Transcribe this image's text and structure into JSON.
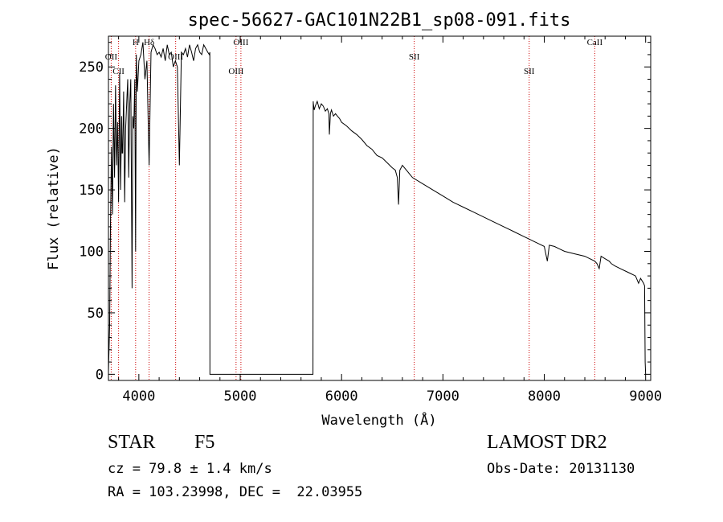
{
  "chart_data": {
    "type": "line",
    "title": "spec-56627-GAC101N22B1_sp08-091.fits",
    "xlabel": "Wavelength (Å)",
    "ylabel": "Flux (relative)",
    "xlim": [
      3700,
      9050
    ],
    "ylim": [
      -5,
      275
    ],
    "xticks": [
      4000,
      5000,
      6000,
      7000,
      8000,
      9000
    ],
    "yticks": [
      0,
      50,
      100,
      150,
      200,
      250
    ],
    "grid": false,
    "line_color": "#000000",
    "marker_color": "#cc0000",
    "gaps": [
      [
        4700,
        5720
      ]
    ],
    "series": [
      {
        "x": [
          3700,
          3712,
          3720,
          3730,
          3740,
          3750,
          3760,
          3770,
          3780,
          3790,
          3800,
          3810,
          3820,
          3830,
          3835,
          3840,
          3850,
          3860,
          3870,
          3880,
          3890,
          3900,
          3910,
          3920,
          3933,
          3940,
          3950,
          3960,
          3968,
          3975,
          3985,
          4000,
          4020,
          4040,
          4060,
          4080,
          4101,
          4120,
          4140,
          4160,
          4180,
          4200,
          4220,
          4240,
          4260,
          4280,
          4300,
          4320,
          4340,
          4360,
          4380,
          4400,
          4420,
          4440,
          4460,
          4480,
          4500,
          4520,
          4540,
          4560,
          4580,
          4600,
          4620,
          4640,
          4660,
          4680,
          4695,
          4700,
          4701,
          5718,
          5720,
          5722,
          5730,
          5740,
          5760,
          5780,
          5800,
          5820,
          5840,
          5860,
          5875,
          5880,
          5890,
          5900,
          5920,
          5940,
          5960,
          5980,
          6000,
          6050,
          6100,
          6150,
          6200,
          6250,
          6300,
          6350,
          6400,
          6450,
          6500,
          6530,
          6550,
          6562,
          6575,
          6600,
          6650,
          6700,
          6800,
          6900,
          7000,
          7100,
          7200,
          7300,
          7400,
          7500,
          7600,
          7700,
          7800,
          7850,
          7900,
          7950,
          8000,
          8030,
          8050,
          8100,
          8150,
          8200,
          8300,
          8400,
          8450,
          8498,
          8520,
          8542,
          8560,
          8600,
          8640,
          8662,
          8700,
          8750,
          8800,
          8850,
          8900,
          8930,
          8950,
          8980,
          8990,
          8995,
          9000
        ],
        "y": [
          2,
          40,
          120,
          185,
          130,
          220,
          160,
          235,
          170,
          205,
          140,
          245,
          150,
          210,
          180,
          180,
          230,
          140,
          200,
          220,
          240,
          160,
          220,
          240,
          70,
          210,
          200,
          240,
          100,
          260,
          230,
          255,
          260,
          270,
          240,
          255,
          170,
          262,
          268,
          265,
          260,
          262,
          258,
          265,
          255,
          268,
          260,
          262,
          250,
          255,
          250,
          170,
          262,
          260,
          265,
          258,
          268,
          262,
          255,
          265,
          268,
          262,
          260,
          268,
          265,
          262,
          260,
          262,
          0,
          0,
          222,
          220,
          215,
          218,
          222,
          216,
          220,
          218,
          214,
          216,
          212,
          195,
          212,
          215,
          210,
          212,
          210,
          208,
          205,
          202,
          198,
          195,
          191,
          186,
          183,
          178,
          176,
          172,
          168,
          166,
          160,
          138,
          166,
          170,
          165,
          160,
          155,
          150,
          145,
          140,
          136,
          132,
          128,
          124,
          120,
          116,
          112,
          110,
          108,
          106,
          104,
          92,
          105,
          104,
          102,
          100,
          98,
          96,
          94,
          92,
          90,
          86,
          96,
          94,
          92,
          90,
          88,
          86,
          84,
          82,
          80,
          74,
          78,
          74,
          72,
          10,
          0
        ]
      }
    ],
    "markers": [
      {
        "label": "Hδ",
        "x": 4101
      },
      {
        "label": "OII",
        "x": 3727
      },
      {
        "label": "CII",
        "x": 3800
      },
      {
        "label": "H",
        "x": 3968
      },
      {
        "label": "OIII",
        "x": 4363
      },
      {
        "label": "OIII",
        "x": 4959
      },
      {
        "label": "OIII",
        "x": 5007
      },
      {
        "label": "SII",
        "x": 6717
      },
      {
        "label": "SII",
        "x": 7851
      },
      {
        "label": "CaII",
        "x": 8498
      }
    ]
  },
  "info": {
    "object_class": "STAR",
    "subclass": "F5",
    "survey": "LAMOST DR2",
    "redshift_line": "cz = 79.8 ± 1.4 km/s",
    "obs_date_line": "Obs-Date: 20131130",
    "coords_line": "RA = 103.23998, DEC =  22.03955"
  }
}
